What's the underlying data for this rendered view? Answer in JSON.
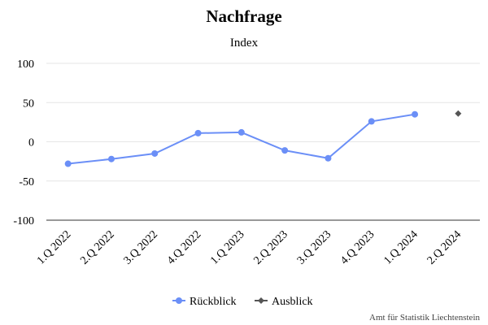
{
  "chart_data": {
    "type": "line",
    "title": "Nachfrage",
    "subtitle": "Index",
    "categories": [
      "1.Q 2022",
      "2.Q 2022",
      "3.Q 2022",
      "4.Q 2022",
      "1.Q 2023",
      "2.Q 2023",
      "3.Q 2023",
      "4.Q 2023",
      "1.Q 2024",
      "2.Q 2024"
    ],
    "series": [
      {
        "name": "Rückblick",
        "color": "#6b8ff7",
        "marker": "circle",
        "values": [
          -28,
          -22,
          -15,
          11,
          12,
          -11,
          -21,
          26,
          35,
          null
        ]
      },
      {
        "name": "Ausblick",
        "color": "#555555",
        "marker": "diamond",
        "values": [
          null,
          null,
          null,
          null,
          null,
          null,
          null,
          null,
          null,
          36
        ]
      }
    ],
    "ylim": [
      -100,
      100
    ],
    "yticks": [
      100,
      50,
      0,
      -50,
      -100
    ],
    "grid": true,
    "legend": "bottom-center",
    "credits": "Amt für Statistik Liechtenstein"
  }
}
